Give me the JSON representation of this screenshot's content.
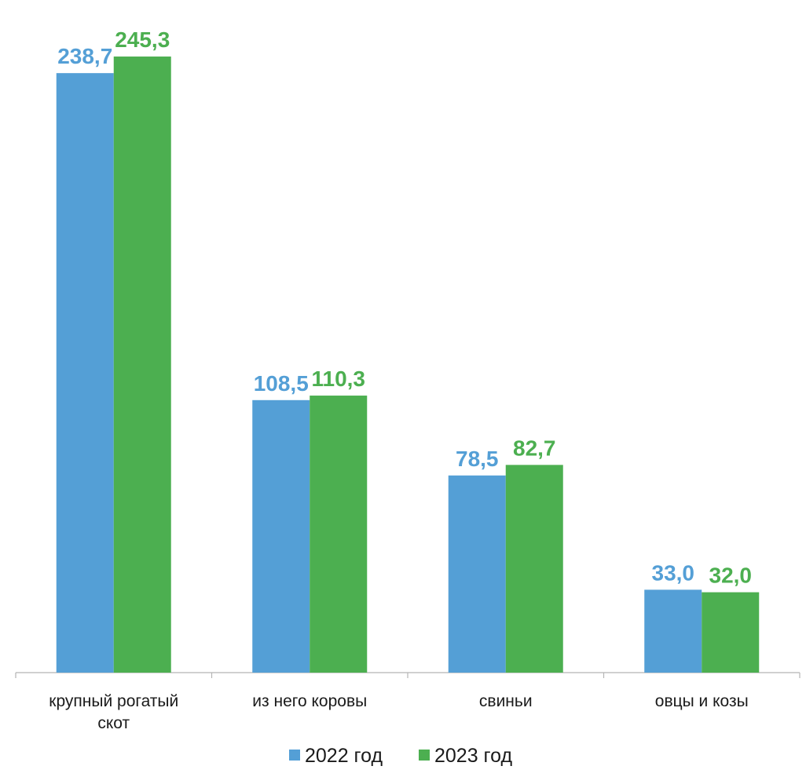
{
  "chart_data": {
    "type": "bar",
    "categories": [
      [
        "крупный рогатый",
        "скот"
      ],
      [
        "из него коровы"
      ],
      [
        "свиньи"
      ],
      [
        "овцы и козы"
      ]
    ],
    "series": [
      {
        "name": "2022 год",
        "color": "#549fd6",
        "values": [
          238.7,
          108.5,
          78.5,
          33.0
        ],
        "labels": [
          "238,7",
          "108,5",
          "78,5",
          "33,0"
        ]
      },
      {
        "name": "2023 год",
        "color": "#4caf50",
        "values": [
          245.3,
          110.3,
          82.7,
          32.0
        ],
        "labels": [
          "245,3",
          "110,3",
          "82,7",
          "32,0"
        ]
      }
    ],
    "ylim": [
      0,
      260
    ],
    "grid": false,
    "legend_position": "bottom",
    "title": "",
    "xlabel": "",
    "ylabel": ""
  }
}
